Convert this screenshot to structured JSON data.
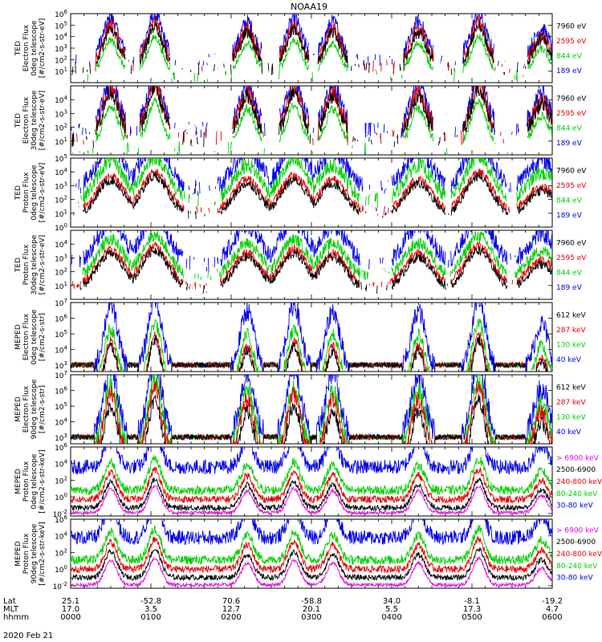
{
  "chart_data": {
    "type": "line",
    "title": "NOAA19",
    "x_label": "hhmm",
    "x_range": [
      0,
      360
    ],
    "date": "2020 Feb 21",
    "ephemeris": {
      "row_labels": [
        "Lat",
        "MLT",
        "hhmm"
      ],
      "ticks": [
        {
          "t": 0,
          "lat": "25.1",
          "mlt": "17.0",
          "hhmm": "0000"
        },
        {
          "t": 60,
          "lat": "-52.8",
          "mlt": "3.5",
          "hhmm": "0100"
        },
        {
          "t": 120,
          "lat": "70.6",
          "mlt": "12.7",
          "hhmm": "0200"
        },
        {
          "t": 180,
          "lat": "-58.8",
          "mlt": "20.1",
          "hhmm": "0300"
        },
        {
          "t": 240,
          "lat": "34.0",
          "mlt": "5.5",
          "hhmm": "0400"
        },
        {
          "t": 300,
          "lat": "-8.1",
          "mlt": "17.3",
          "hhmm": "0500"
        },
        {
          "t": 360,
          "lat": "-19.2",
          "mlt": "4.7",
          "hhmm": "0600"
        }
      ]
    },
    "passes": [
      {
        "t": 30,
        "e": 1.0
      },
      {
        "t": 63,
        "e": 1.1
      },
      {
        "t": 132,
        "e": 0.9
      },
      {
        "t": 167,
        "e": 1.0
      },
      {
        "t": 196,
        "e": 0.9
      },
      {
        "t": 260,
        "e": 0.9
      },
      {
        "t": 305,
        "e": 1.1
      },
      {
        "t": 352,
        "e": 0.7
      }
    ],
    "panels": [
      {
        "ylabel": [
          "TED",
          "Electron Flux",
          "0deg telescope",
          "[#/cm2-s-str-eV]"
        ],
        "ymin": 0,
        "ymax": 6,
        "ytick_exps": [
          1,
          2,
          3,
          4,
          5,
          6
        ],
        "style": "ted_e",
        "series": [
          {
            "name": "7960 eV",
            "color": "#000000",
            "level": 1.8,
            "amp": 0.5
          },
          {
            "name": "2595 eV",
            "color": "#e60000",
            "level": 2.0,
            "amp": 0.6
          },
          {
            "name": "844 eV",
            "color": "#00d000",
            "level": 1.1,
            "amp": 0.3
          },
          {
            "name": "189 eV",
            "color": "#0000e6",
            "level": 2.6,
            "amp": 0.6
          }
        ]
      },
      {
        "ylabel": [
          "TED",
          "Electron Flux",
          "30deg telescope",
          "[#/cm2-s-str-eV]"
        ],
        "ymin": 0,
        "ymax": 5,
        "ytick_exps": [
          1,
          2,
          3,
          4
        ],
        "style": "ted_e",
        "series": [
          {
            "name": "7960 eV",
            "color": "#000000",
            "level": 1.7,
            "amp": 0.5
          },
          {
            "name": "2595 eV",
            "color": "#e60000",
            "level": 1.9,
            "amp": 0.6
          },
          {
            "name": "844 eV",
            "color": "#00d000",
            "level": 1.0,
            "amp": 0.3
          },
          {
            "name": "189 eV",
            "color": "#0000e6",
            "level": 2.4,
            "amp": 0.6
          }
        ]
      },
      {
        "ylabel": [
          "TED",
          "Proton Flux",
          "0deg telescope",
          "[#/cm2-s-str-eV]"
        ],
        "ymin": 0,
        "ymax": 5,
        "ytick_exps": [
          0,
          1,
          2,
          3,
          4,
          5
        ],
        "style": "ted_p",
        "series": [
          {
            "name": "7960 eV",
            "color": "#000000",
            "level": 0.8,
            "amp": 0.3
          },
          {
            "name": "2595 eV",
            "color": "#e60000",
            "level": 1.1,
            "amp": 0.3
          },
          {
            "name": "844 eV",
            "color": "#00d000",
            "level": 1.9,
            "amp": 0.5
          },
          {
            "name": "189 eV",
            "color": "#0000e6",
            "level": 2.8,
            "amp": 0.6
          }
        ]
      },
      {
        "ylabel": [
          "TED",
          "Proton Flux",
          "30deg telescope",
          "[#/cm2-s-str-eV]"
        ],
        "ymin": 0,
        "ymax": 5,
        "ytick_exps": [
          1,
          2,
          3,
          4
        ],
        "style": "ted_p",
        "series": [
          {
            "name": "7960 eV",
            "color": "#000000",
            "level": 0.7,
            "amp": 0.3
          },
          {
            "name": "2595 eV",
            "color": "#e60000",
            "level": 1.0,
            "amp": 0.3
          },
          {
            "name": "844 eV",
            "color": "#00d000",
            "level": 1.6,
            "amp": 0.4
          },
          {
            "name": "189 eV",
            "color": "#0000e6",
            "level": 2.6,
            "amp": 0.6
          }
        ]
      },
      {
        "ylabel": [
          "MEPED",
          "Electron Flux",
          "0deg telescope",
          "[#/cm2-s-str]"
        ],
        "ymin": 2.6,
        "ymax": 7,
        "ytick_exps": [
          3,
          4,
          5,
          6,
          7
        ],
        "style": "meped_e",
        "series": [
          {
            "name": "612 keV",
            "color": "#000000",
            "level": 0.7,
            "amp": 0.3
          },
          {
            "name": "287 keV",
            "color": "#e60000",
            "level": 1.0,
            "amp": 0.3
          },
          {
            "name": "130 keV",
            "color": "#00d000",
            "level": 1.6,
            "amp": 0.4
          },
          {
            "name": "40 keV",
            "color": "#0000e6",
            "level": 2.8,
            "amp": 0.6
          }
        ]
      },
      {
        "ylabel": [
          "MEPED",
          "Electron Flux",
          "90deg telescope",
          "[#/cm2-s-str]"
        ],
        "ymin": 2.6,
        "ymax": 7,
        "ytick_exps": [
          3,
          4,
          5,
          6,
          7
        ],
        "style": "meped_e",
        "series": [
          {
            "name": "612 keV",
            "color": "#000000",
            "level": 1.3,
            "amp": 0.4
          },
          {
            "name": "287 keV",
            "color": "#e60000",
            "level": 1.9,
            "amp": 0.5
          },
          {
            "name": "130 keV",
            "color": "#00d000",
            "level": 2.3,
            "amp": 0.6
          },
          {
            "name": "40 keV",
            "color": "#0000e6",
            "level": 3.2,
            "amp": 0.7
          }
        ]
      },
      {
        "ylabel": [
          "MEPED",
          "Proton Flux",
          "0deg telescope",
          "[#/cm2-s-str-keV]"
        ],
        "ymin": -2.3,
        "ymax": 6,
        "ytick_exps": [
          -2,
          0,
          2,
          4,
          6
        ],
        "style": "meped_p",
        "series": [
          {
            "name": "> 6900 keV",
            "color": "#e600e6",
            "level": -1.9,
            "amp": 0.2
          },
          {
            "name": "2500-6900",
            "color": "#000000",
            "level": -1.3,
            "amp": 0.3
          },
          {
            "name": "240-800 keV",
            "color": "#e60000",
            "level": -0.3,
            "amp": 0.4
          },
          {
            "name": "80-240 keV",
            "color": "#00d000",
            "level": 0.8,
            "amp": 0.5
          },
          {
            "name": "30-80 keV",
            "color": "#0000e6",
            "level": 3.6,
            "amp": 0.8
          }
        ]
      },
      {
        "ylabel": [
          "MEPED",
          "Proton Flux",
          "90deg telescope",
          "[#/cm2-s-str-keV]"
        ],
        "ymin": -2.3,
        "ymax": 6,
        "ytick_exps": [
          -2,
          0,
          2,
          4,
          6
        ],
        "style": "meped_p",
        "series": [
          {
            "name": "> 6900 keV",
            "color": "#e600e6",
            "level": -1.9,
            "amp": 0.2
          },
          {
            "name": "2500-6900",
            "color": "#000000",
            "level": -1.0,
            "amp": 0.3
          },
          {
            "name": "240-800 keV",
            "color": "#e60000",
            "level": 0.0,
            "amp": 0.4
          },
          {
            "name": "80-240 keV",
            "color": "#00d000",
            "level": 1.1,
            "amp": 0.5
          },
          {
            "name": "30-80 keV",
            "color": "#0000e6",
            "level": 3.8,
            "amp": 0.8
          }
        ]
      }
    ]
  }
}
